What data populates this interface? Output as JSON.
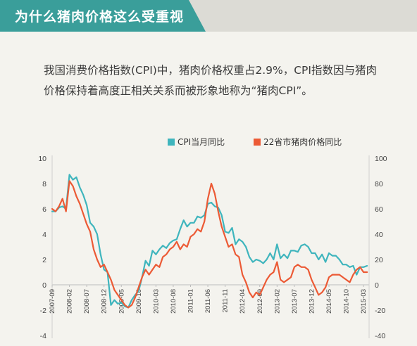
{
  "header": {
    "title": "为什么猪肉价格这么受重视"
  },
  "intro": {
    "line1": "我国消费价格指数(CPI)中，猪肉价格权重占2.9%，CPI指数因与猪肉",
    "line2": "价格保持着高度正相关关系而被形象地称为“猪肉CPI”。"
  },
  "colors": {
    "accent": "#3a9e9a",
    "cpi": "#3fb5bd",
    "pork": "#ec5a35"
  },
  "chart_data": {
    "type": "line",
    "title": "",
    "legend_position": "top",
    "y_left": {
      "ticks": [
        10,
        8,
        6,
        4,
        2,
        0,
        -2,
        -4
      ],
      "range": [
        -4,
        10
      ]
    },
    "y_right": {
      "ticks": [
        100,
        80,
        60,
        40,
        20,
        0,
        -20,
        -40
      ],
      "range": [
        -40,
        100
      ]
    },
    "x_ticks": [
      "2007-09",
      "2008-02",
      "2008-07",
      "2008-12",
      "2009-05",
      "2009-10",
      "2010-03",
      "2010-08",
      "2011-01",
      "2011-06",
      "2011-11",
      "2012-04",
      "2012-09",
      "2013-02",
      "2013-07",
      "2013-12",
      "2014-05",
      "2014-10",
      "2015-03"
    ],
    "series": [
      {
        "name": "CPI当月同比",
        "axis": "left",
        "points": [
          [
            "2007-09",
            5.8
          ],
          [
            "2007-10",
            5.8
          ],
          [
            "2007-11",
            6.1
          ],
          [
            "2007-12",
            6.2
          ],
          [
            "2008-01",
            6.0
          ],
          [
            "2008-02",
            8.7
          ],
          [
            "2008-03",
            8.3
          ],
          [
            "2008-04",
            8.5
          ],
          [
            "2008-05",
            7.7
          ],
          [
            "2008-06",
            7.1
          ],
          [
            "2008-07",
            6.3
          ],
          [
            "2008-08",
            4.9
          ],
          [
            "2008-09",
            4.6
          ],
          [
            "2008-10",
            4.0
          ],
          [
            "2008-11",
            2.4
          ],
          [
            "2008-12",
            1.2
          ],
          [
            "2009-01",
            1.0
          ],
          [
            "2009-02",
            -1.6
          ],
          [
            "2009-03",
            -1.2
          ],
          [
            "2009-04",
            -1.5
          ],
          [
            "2009-05",
            -1.4
          ],
          [
            "2009-06",
            -1.7
          ],
          [
            "2009-07",
            -1.8
          ],
          [
            "2009-08",
            -1.2
          ],
          [
            "2009-09",
            -0.8
          ],
          [
            "2009-10",
            -0.5
          ],
          [
            "2009-11",
            0.6
          ],
          [
            "2009-12",
            1.9
          ],
          [
            "2010-01",
            1.5
          ],
          [
            "2010-02",
            2.7
          ],
          [
            "2010-03",
            2.4
          ],
          [
            "2010-04",
            2.8
          ],
          [
            "2010-05",
            3.1
          ],
          [
            "2010-06",
            2.9
          ],
          [
            "2010-07",
            3.3
          ],
          [
            "2010-08",
            3.5
          ],
          [
            "2010-09",
            3.6
          ],
          [
            "2010-10",
            4.4
          ],
          [
            "2010-11",
            5.1
          ],
          [
            "2010-12",
            4.6
          ],
          [
            "2011-01",
            4.9
          ],
          [
            "2011-02",
            4.9
          ],
          [
            "2011-03",
            5.4
          ],
          [
            "2011-04",
            5.3
          ],
          [
            "2011-05",
            5.5
          ],
          [
            "2011-06",
            6.4
          ],
          [
            "2011-07",
            6.5
          ],
          [
            "2011-08",
            6.2
          ],
          [
            "2011-09",
            6.1
          ],
          [
            "2011-10",
            5.5
          ],
          [
            "2011-11",
            4.2
          ],
          [
            "2011-12",
            4.1
          ],
          [
            "2012-01",
            4.5
          ],
          [
            "2012-02",
            3.2
          ],
          [
            "2012-03",
            3.6
          ],
          [
            "2012-04",
            3.4
          ],
          [
            "2012-05",
            3.0
          ],
          [
            "2012-06",
            2.2
          ],
          [
            "2012-07",
            1.8
          ],
          [
            "2012-08",
            2.0
          ],
          [
            "2012-09",
            1.9
          ],
          [
            "2012-10",
            1.7
          ],
          [
            "2012-11",
            2.0
          ],
          [
            "2012-12",
            2.5
          ],
          [
            "2013-01",
            2.0
          ],
          [
            "2013-02",
            3.2
          ],
          [
            "2013-03",
            2.1
          ],
          [
            "2013-04",
            2.4
          ],
          [
            "2013-05",
            2.1
          ],
          [
            "2013-06",
            2.7
          ],
          [
            "2013-07",
            2.7
          ],
          [
            "2013-08",
            2.6
          ],
          [
            "2013-09",
            3.1
          ],
          [
            "2013-10",
            3.2
          ],
          [
            "2013-11",
            3.0
          ],
          [
            "2013-12",
            2.5
          ],
          [
            "2014-01",
            2.5
          ],
          [
            "2014-02",
            2.0
          ],
          [
            "2014-03",
            2.4
          ],
          [
            "2014-04",
            1.8
          ],
          [
            "2014-05",
            2.5
          ],
          [
            "2014-06",
            2.3
          ],
          [
            "2014-07",
            2.3
          ],
          [
            "2014-08",
            2.0
          ],
          [
            "2014-09",
            1.6
          ],
          [
            "2014-10",
            1.6
          ],
          [
            "2014-11",
            1.4
          ],
          [
            "2014-12",
            1.5
          ],
          [
            "2015-01",
            0.8
          ],
          [
            "2015-02",
            1.4
          ],
          [
            "2015-03",
            1.4
          ],
          [
            "2015-04",
            1.5
          ]
        ]
      },
      {
        "name": "22省市猪肉价格同比",
        "axis": "right",
        "points": [
          [
            "2007-09",
            60
          ],
          [
            "2007-10",
            58
          ],
          [
            "2007-11",
            62
          ],
          [
            "2007-12",
            68
          ],
          [
            "2008-01",
            58
          ],
          [
            "2008-02",
            82
          ],
          [
            "2008-03",
            78
          ],
          [
            "2008-04",
            70
          ],
          [
            "2008-05",
            64
          ],
          [
            "2008-06",
            56
          ],
          [
            "2008-07",
            48
          ],
          [
            "2008-08",
            42
          ],
          [
            "2008-09",
            28
          ],
          [
            "2008-10",
            20
          ],
          [
            "2008-11",
            14
          ],
          [
            "2008-12",
            16
          ],
          [
            "2009-01",
            10
          ],
          [
            "2009-02",
            4
          ],
          [
            "2009-03",
            -4
          ],
          [
            "2009-04",
            -8
          ],
          [
            "2009-05",
            -12
          ],
          [
            "2009-06",
            -16
          ],
          [
            "2009-07",
            -18
          ],
          [
            "2009-08",
            -16
          ],
          [
            "2009-09",
            -10
          ],
          [
            "2009-10",
            -2
          ],
          [
            "2009-11",
            6
          ],
          [
            "2009-12",
            12
          ],
          [
            "2010-01",
            8
          ],
          [
            "2010-02",
            12
          ],
          [
            "2010-03",
            16
          ],
          [
            "2010-04",
            14
          ],
          [
            "2010-05",
            22
          ],
          [
            "2010-06",
            24
          ],
          [
            "2010-07",
            28
          ],
          [
            "2010-08",
            30
          ],
          [
            "2010-09",
            34
          ],
          [
            "2010-10",
            28
          ],
          [
            "2010-11",
            32
          ],
          [
            "2010-12",
            30
          ],
          [
            "2011-01",
            38
          ],
          [
            "2011-02",
            40
          ],
          [
            "2011-03",
            44
          ],
          [
            "2011-04",
            42
          ],
          [
            "2011-05",
            50
          ],
          [
            "2011-06",
            68
          ],
          [
            "2011-07",
            80
          ],
          [
            "2011-08",
            72
          ],
          [
            "2011-09",
            58
          ],
          [
            "2011-10",
            46
          ],
          [
            "2011-11",
            38
          ],
          [
            "2011-12",
            30
          ],
          [
            "2012-01",
            32
          ],
          [
            "2012-02",
            24
          ],
          [
            "2012-03",
            22
          ],
          [
            "2012-04",
            8
          ],
          [
            "2012-05",
            2
          ],
          [
            "2012-06",
            -6
          ],
          [
            "2012-07",
            -10
          ],
          [
            "2012-08",
            -6
          ],
          [
            "2012-09",
            -8
          ],
          [
            "2012-10",
            -2
          ],
          [
            "2012-11",
            4
          ],
          [
            "2012-12",
            8
          ],
          [
            "2013-01",
            10
          ],
          [
            "2013-02",
            18
          ],
          [
            "2013-03",
            4
          ],
          [
            "2013-04",
            2
          ],
          [
            "2013-05",
            4
          ],
          [
            "2013-06",
            6
          ],
          [
            "2013-07",
            14
          ],
          [
            "2013-08",
            16
          ],
          [
            "2013-09",
            14
          ],
          [
            "2013-10",
            14
          ],
          [
            "2013-11",
            12
          ],
          [
            "2013-12",
            4
          ],
          [
            "2014-01",
            -2
          ],
          [
            "2014-02",
            -8
          ],
          [
            "2014-03",
            -6
          ],
          [
            "2014-04",
            -2
          ],
          [
            "2014-05",
            6
          ],
          [
            "2014-06",
            8
          ],
          [
            "2014-07",
            8
          ],
          [
            "2014-08",
            8
          ],
          [
            "2014-09",
            6
          ],
          [
            "2014-10",
            4
          ],
          [
            "2014-11",
            2
          ],
          [
            "2014-12",
            8
          ],
          [
            "2015-01",
            12
          ],
          [
            "2015-02",
            14
          ],
          [
            "2015-03",
            10
          ],
          [
            "2015-04",
            10
          ]
        ]
      }
    ]
  }
}
